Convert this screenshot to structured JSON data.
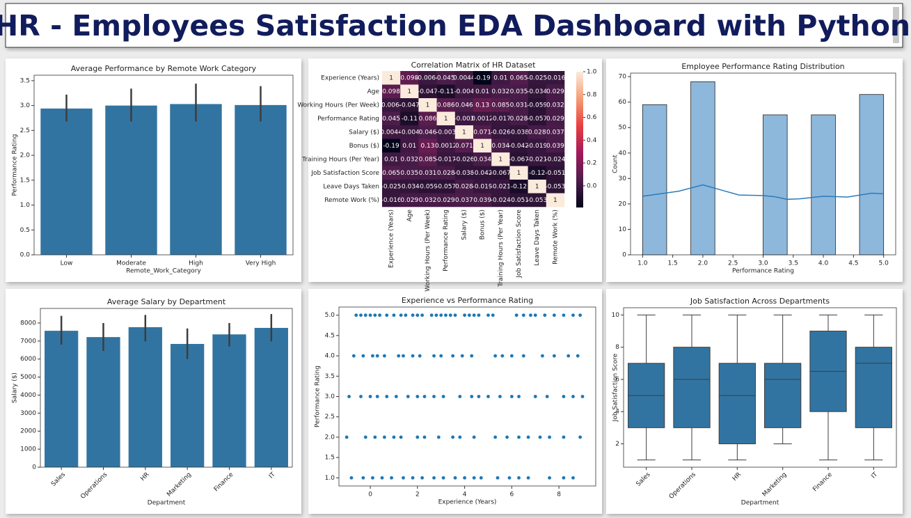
{
  "title": "HR - Employees Satisfaction EDA Dashboard with Python",
  "chart_data": [
    {
      "type": "bar",
      "title": "Average Performance by Remote Work Category",
      "xlabel": "Remote_Work_Category",
      "ylabel": "Performance Rating",
      "categories": [
        "Low",
        "Moderate",
        "High",
        "Very High"
      ],
      "values": [
        2.94,
        3.0,
        3.03,
        3.01
      ],
      "ci_low": [
        2.68,
        2.68,
        2.68,
        2.68
      ],
      "ci_high": [
        3.22,
        3.34,
        3.44,
        3.39
      ],
      "color": "#3274a1",
      "ylim": [
        0,
        3.61
      ],
      "yticks": [
        {
          "value": 0,
          "label": "0.0"
        },
        0.5,
        {
          "value": 1,
          "label": "1.0"
        },
        1.5,
        {
          "value": 2,
          "label": "2.0"
        },
        2.5,
        {
          "value": 3,
          "label": "3.0"
        },
        3.5
      ]
    },
    {
      "type": "heatmap",
      "title": "Correlation Matrix of HR Dataset",
      "labels": [
        "Experience (Years)",
        "Age",
        "Working Hours (Per Week)",
        "Performance Rating",
        "Salary ($)",
        "Bonus ($)",
        "Training Hours (Per Year)",
        "Job Satisfaction Score",
        "Leave Days Taken",
        "Remote Work (%)"
      ],
      "matrix": [
        [
          1,
          0.098,
          -0.0064,
          0.045,
          0.0044,
          -0.19,
          0.01,
          0.065,
          -0.025,
          -0.016
        ],
        [
          0.098,
          1,
          -0.047,
          -0.11,
          -0.004,
          0.01,
          0.032,
          0.035,
          -0.034,
          0.029
        ],
        [
          -0.0064,
          -0.047,
          1,
          0.086,
          0.046,
          0.13,
          0.085,
          0.031,
          -0.059,
          0.032
        ],
        [
          0.045,
          -0.11,
          0.086,
          1,
          -0.003,
          0.0012,
          -0.017,
          0.028,
          -0.057,
          0.029
        ],
        [
          0.0044,
          -0.004,
          0.046,
          -0.003,
          1,
          0.071,
          -0.026,
          -0.038,
          0.028,
          0.037
        ],
        [
          -0.19,
          0.01,
          0.13,
          0.0012,
          0.071,
          1,
          0.034,
          -0.042,
          -0.019,
          0.039
        ],
        [
          0.01,
          0.032,
          0.085,
          -0.017,
          -0.026,
          0.034,
          1,
          -0.067,
          -0.021,
          -0.024
        ],
        [
          0.065,
          0.035,
          0.031,
          0.028,
          -0.038,
          -0.042,
          -0.067,
          1,
          -0.12,
          -0.051
        ],
        [
          -0.025,
          -0.034,
          -0.059,
          -0.057,
          0.028,
          -0.019,
          -0.021,
          -0.12,
          1,
          -0.053
        ],
        [
          -0.016,
          0.029,
          0.032,
          0.029,
          0.037,
          0.039,
          -0.024,
          -0.051,
          -0.053,
          1
        ]
      ],
      "zlim": [
        -0.19,
        1
      ],
      "zticks": [
        {
          "value": 0,
          "label": "0.0"
        },
        0.2,
        0.4,
        0.6,
        0.8,
        {
          "value": 1,
          "label": "1.0"
        }
      ],
      "colormap": [
        "#03051a",
        "#4c1d4b",
        "#a11a5b",
        "#e83f3f",
        "#f69c73",
        "#faebdd"
      ]
    },
    {
      "type": "histogram",
      "title": "Employee Performance Rating Distribution",
      "xlabel": "Performance Rating",
      "ylabel": "Count",
      "bins": [
        1.0,
        1.4,
        1.8,
        2.2,
        2.6,
        3.0,
        3.4,
        3.8,
        4.2,
        4.6,
        5.0
      ],
      "counts": [
        59,
        0,
        68,
        0,
        0,
        55,
        0,
        55,
        0,
        63
      ],
      "color": "#8db8dc",
      "kde": {
        "color": "#2b7bba",
        "x": [
          1.0,
          1.3,
          1.6,
          2.0,
          2.3,
          2.6,
          3.0,
          3.2,
          3.4,
          3.6,
          3.8,
          4.0,
          4.4,
          4.8,
          5.0
        ],
        "values": [
          23,
          24,
          25,
          27.5,
          25.5,
          23.5,
          23.3,
          22.8,
          21.8,
          22,
          22.5,
          23,
          22.7,
          24.2,
          24
        ]
      },
      "xlim": [
        0.8,
        5.2
      ],
      "xticks": [
        {
          "value": 1,
          "label": "1.0"
        },
        1.5,
        {
          "value": 2,
          "label": "2.0"
        },
        2.5,
        {
          "value": 3,
          "label": "3.0"
        },
        3.5,
        {
          "value": 4,
          "label": "4.0"
        },
        4.5,
        {
          "value": 5,
          "label": "5.0"
        }
      ],
      "ylim": [
        0,
        71.4
      ],
      "yticks": [
        0,
        10,
        20,
        30,
        40,
        50,
        60,
        70
      ]
    },
    {
      "type": "bar",
      "title": "Average Salary by Department",
      "xlabel": "Department",
      "ylabel": "Salary ($)",
      "x_label_rotation": 45,
      "categories": [
        "Sales",
        "Operations",
        "HR",
        "Marketing",
        "Finance",
        "IT"
      ],
      "values": [
        7570,
        7220,
        7770,
        6840,
        7370,
        7730
      ],
      "ci_low": [
        6800,
        6450,
        6980,
        6000,
        6700,
        6980
      ],
      "ci_high": [
        8400,
        8000,
        8450,
        7700,
        8000,
        8500
      ],
      "color": "#3274a1",
      "ylim": [
        0,
        8810
      ],
      "yticks": [
        0,
        1000,
        2000,
        3000,
        4000,
        5000,
        6000,
        7000,
        8000
      ]
    },
    {
      "type": "scatter",
      "title": "Experience vs Performance Rating",
      "xlabel": "Experience (Years)",
      "ylabel": "Performance Rating",
      "color": "#1f77b4",
      "x": [
        -0.6,
        -0.4,
        -0.2,
        0,
        0.2,
        0.4,
        0.7,
        1.0,
        1.3,
        1.5,
        1.8,
        2.0,
        2.2,
        2.6,
        2.8,
        3.0,
        3.2,
        3.4,
        3.6,
        4.0,
        4.2,
        4.4,
        4.6,
        5.0,
        5.2,
        6.2,
        6.5,
        6.8,
        7.0,
        7.4,
        7.8,
        8.2,
        8.6,
        8.9,
        -0.7,
        -0.3,
        0.1,
        0.3,
        0.6,
        1.2,
        1.4,
        1.8,
        2.1,
        2.7,
        3.0,
        3.5,
        3.9,
        4.3,
        5.3,
        5.6,
        6.0,
        6.5,
        7.3,
        7.8,
        8.4,
        8.8,
        -0.9,
        -0.4,
        0,
        0.3,
        0.7,
        1.1,
        1.6,
        2.0,
        2.3,
        2.7,
        3.1,
        3.8,
        4.3,
        4.6,
        5.0,
        5.5,
        6.0,
        6.3,
        7.0,
        7.5,
        8.2,
        8.6,
        9.0,
        -1.0,
        -0.2,
        0.2,
        0.6,
        1.0,
        1.3,
        2.0,
        2.3,
        2.9,
        3.5,
        3.8,
        4.4,
        5.3,
        5.8,
        6.3,
        6.7,
        7.2,
        7.6,
        8.2,
        8.9,
        -0.8,
        -0.3,
        0.1,
        0.5,
        0.9,
        1.4,
        1.8,
        2.2,
        2.7,
        3.1,
        3.6,
        4.0,
        4.4,
        4.7,
        5.4,
        5.9,
        6.3,
        6.7,
        7.6,
        8.2,
        8.6
      ],
      "values": [
        5,
        5,
        5,
        5,
        5,
        5,
        5,
        5,
        5,
        5,
        5,
        5,
        5,
        5,
        5,
        5,
        5,
        5,
        5,
        5,
        5,
        5,
        5,
        5,
        5,
        5,
        5,
        5,
        5,
        5,
        5,
        5,
        5,
        5,
        4,
        4,
        4,
        4,
        4,
        4,
        4,
        4,
        4,
        4,
        4,
        4,
        4,
        4,
        4,
        4,
        4,
        4,
        4,
        4,
        4,
        4,
        3,
        3,
        3,
        3,
        3,
        3,
        3,
        3,
        3,
        3,
        3,
        3,
        3,
        3,
        3,
        3,
        3,
        3,
        3,
        3,
        3,
        3,
        3,
        2,
        2,
        2,
        2,
        2,
        2,
        2,
        2,
        2,
        2,
        2,
        2,
        2,
        2,
        2,
        2,
        2,
        2,
        2,
        2,
        1,
        1,
        1,
        1,
        1,
        1,
        1,
        1,
        1,
        1,
        1,
        1,
        1,
        1,
        1,
        1,
        1,
        1,
        1,
        1,
        1
      ],
      "xlim": [
        -1.33,
        9.56
      ],
      "xticks": [
        0,
        2,
        4,
        6,
        8
      ],
      "ylim": [
        0.8,
        5.2
      ],
      "yticks": [
        {
          "value": 1,
          "label": "1.0"
        },
        1.5,
        {
          "value": 2,
          "label": "2.0"
        },
        2.5,
        {
          "value": 3,
          "label": "3.0"
        },
        3.5,
        {
          "value": 4,
          "label": "4.0"
        },
        4.5,
        {
          "value": 5,
          "label": "5.0"
        }
      ]
    },
    {
      "type": "box",
      "title": "Job Satisfaction Across Departments",
      "xlabel": "Department",
      "ylabel": "Job Satisfaction Score",
      "x_label_rotation": 45,
      "color": "#3274a1",
      "categories": [
        "Sales",
        "Operations",
        "HR",
        "Marketing",
        "Finance",
        "IT"
      ],
      "whislo": [
        1,
        1,
        1,
        2,
        1,
        1
      ],
      "q1": [
        3,
        3,
        2,
        3,
        4,
        3
      ],
      "median": [
        5,
        6,
        5,
        6,
        6.5,
        7
      ],
      "q3": [
        7,
        8,
        7,
        7,
        9,
        8
      ],
      "whishi": [
        10,
        10,
        10,
        10,
        10,
        10
      ],
      "ylim": [
        0.55,
        10.45
      ],
      "yticks": [
        2,
        4,
        6,
        8,
        10
      ]
    }
  ]
}
